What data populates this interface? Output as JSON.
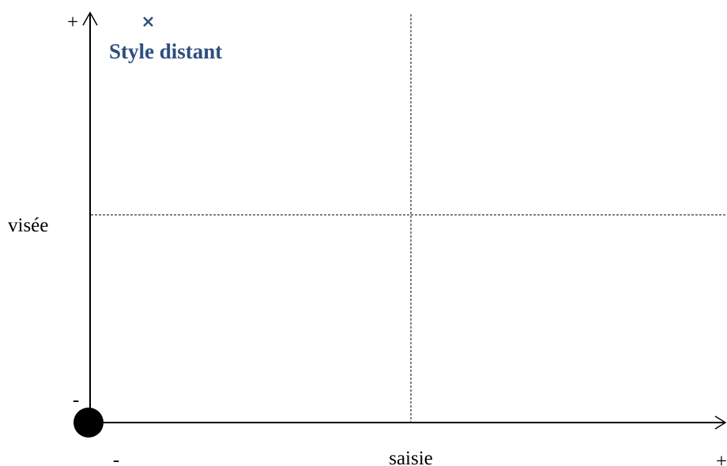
{
  "axes": {
    "y": {
      "label": "visée",
      "max": "+",
      "min": "-"
    },
    "x": {
      "label": "saisie",
      "min": "-",
      "max": "+"
    }
  },
  "points": [
    {
      "label": "Style distant"
    }
  ]
}
